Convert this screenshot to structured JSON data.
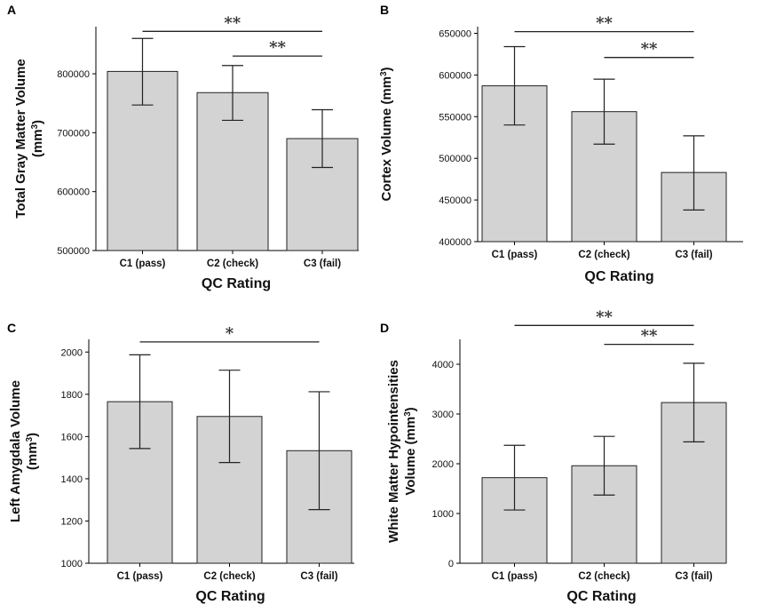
{
  "chart_data": [
    {
      "panel": "A",
      "type": "bar",
      "categories": [
        "C1 (pass)",
        "C2 (check)",
        "C3 (fail)"
      ],
      "values": [
        804000,
        768000,
        690000
      ],
      "errors": [
        [
          747000,
          860000
        ],
        [
          721000,
          814000
        ],
        [
          641000,
          739000
        ]
      ],
      "xlabel": "QC Rating",
      "ylabel": [
        "Total Gray Matter Volume",
        "(mm³)"
      ],
      "ylim": [
        500000,
        880000
      ],
      "yticks": [
        500000,
        600000,
        700000,
        800000
      ],
      "significance": [
        {
          "from": 0,
          "to": 2,
          "label": "**",
          "value": 872000
        },
        {
          "from": 1,
          "to": 2,
          "label": "**",
          "value": 830000
        }
      ]
    },
    {
      "panel": "B",
      "type": "bar",
      "categories": [
        "C1 (pass)",
        "C2 (check)",
        "C3 (fail)"
      ],
      "values": [
        587000,
        556000,
        483000
      ],
      "errors": [
        [
          540000,
          634000
        ],
        [
          517000,
          595000
        ],
        [
          438000,
          527000
        ]
      ],
      "xlabel": "QC Rating",
      "ylabel": [
        "Cortex Volume (mm³)"
      ],
      "ylim": [
        400000,
        658000
      ],
      "yticks": [
        400000,
        450000,
        500000,
        550000,
        600000,
        650000
      ],
      "significance": [
        {
          "from": 0,
          "to": 2,
          "label": "**",
          "value": 652000
        },
        {
          "from": 1,
          "to": 2,
          "label": "**",
          "value": 621000
        }
      ]
    },
    {
      "panel": "C",
      "type": "bar",
      "categories": [
        "C1 (pass)",
        "C2 (check)",
        "C3 (fail)"
      ],
      "values": [
        1765,
        1695,
        1533
      ],
      "errors": [
        [
          1543,
          1987
        ],
        [
          1477,
          1914
        ],
        [
          1254,
          1812
        ]
      ],
      "xlabel": "QC Rating",
      "ylabel": [
        "Left Amygdala Volume",
        "(mm³)"
      ],
      "ylim": [
        1000,
        2060
      ],
      "yticks": [
        1000,
        1200,
        1400,
        1600,
        1800,
        2000
      ],
      "significance": [
        {
          "from": 0,
          "to": 2,
          "label": "*",
          "value": 2048
        }
      ]
    },
    {
      "panel": "D",
      "type": "bar",
      "categories": [
        "C1 (pass)",
        "C2 (check)",
        "C3 (fail)"
      ],
      "values": [
        1720,
        1960,
        3230
      ],
      "errors": [
        [
          1070,
          2370
        ],
        [
          1370,
          2550
        ],
        [
          2440,
          4020
        ]
      ],
      "xlabel": "QC Rating",
      "ylabel": [
        "White Matter Hypointensities",
        "Volume (mm³)"
      ],
      "ylim": [
        0,
        4500
      ],
      "yticks": [
        0,
        1000,
        2000,
        3000,
        4000
      ],
      "significance": [
        {
          "from": 0,
          "to": 2,
          "label": "**",
          "value": 4780
        },
        {
          "from": 1,
          "to": 2,
          "label": "**",
          "value": 4400
        }
      ]
    }
  ]
}
